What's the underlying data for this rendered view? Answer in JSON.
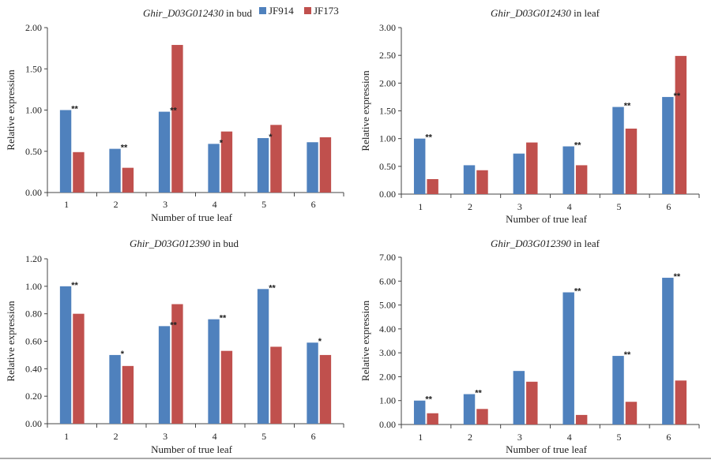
{
  "colors": {
    "JF914": "#4F81BD",
    "JF173": "#C0504D"
  },
  "legend": [
    "JF914",
    "JF173"
  ],
  "chart_data": [
    {
      "type": "bar",
      "title_gene": "Ghir_D03G012430",
      "title_rest": " in bud",
      "xlabel": "Number of true leaf",
      "ylabel": "Relative expression",
      "categories": [
        "1",
        "2",
        "3",
        "4",
        "5",
        "6"
      ],
      "ylim": [
        0,
        2.0
      ],
      "yticks": [
        "0.00",
        "0.50",
        "1.00",
        "1.50",
        "2.00"
      ],
      "series": [
        {
          "name": "JF914",
          "values": [
            1.0,
            0.53,
            0.98,
            0.59,
            0.66,
            0.61
          ]
        },
        {
          "name": "JF173",
          "values": [
            0.49,
            0.3,
            1.79,
            0.74,
            0.82,
            0.67
          ]
        }
      ],
      "significance": [
        "**",
        "**",
        "**",
        "*",
        "*",
        ""
      ]
    },
    {
      "type": "bar",
      "title_gene": "Ghir_D03G012430",
      "title_rest": " in leaf",
      "xlabel": "Number of true leaf",
      "ylabel": "Relative expression",
      "categories": [
        "1",
        "2",
        "3",
        "4",
        "5",
        "6"
      ],
      "ylim": [
        0,
        3.0
      ],
      "yticks": [
        "0.00",
        "0.50",
        "1.00",
        "1.50",
        "2.00",
        "2.50",
        "3.00"
      ],
      "series": [
        {
          "name": "JF914",
          "values": [
            1.0,
            0.52,
            0.73,
            0.86,
            1.57,
            1.75
          ]
        },
        {
          "name": "JF173",
          "values": [
            0.27,
            0.43,
            0.93,
            0.52,
            1.18,
            2.49
          ]
        }
      ],
      "significance": [
        "**",
        "",
        "",
        "**",
        "**",
        "**"
      ]
    },
    {
      "type": "bar",
      "title_gene": "Ghir_D03G012390",
      "title_rest": " in bud",
      "xlabel": "Number of true leaf",
      "ylabel": "Relative expression",
      "categories": [
        "1",
        "2",
        "3",
        "4",
        "5",
        "6"
      ],
      "ylim": [
        0,
        1.2
      ],
      "yticks": [
        "0.00",
        "0.20",
        "0.40",
        "0.60",
        "0.80",
        "1.00",
        "1.20"
      ],
      "series": [
        {
          "name": "JF914",
          "values": [
            1.0,
            0.5,
            0.71,
            0.76,
            0.98,
            0.59
          ]
        },
        {
          "name": "JF173",
          "values": [
            0.8,
            0.42,
            0.87,
            0.53,
            0.56,
            0.5
          ]
        }
      ],
      "significance": [
        "**",
        "*",
        "**",
        "**",
        "**",
        "*"
      ]
    },
    {
      "type": "bar",
      "title_gene": "Ghir_D03G012390",
      "title_rest": " in leaf",
      "xlabel": "Number of true leaf",
      "ylabel": "Relative expression",
      "categories": [
        "1",
        "2",
        "3",
        "4",
        "5",
        "6"
      ],
      "ylim": [
        0,
        7.0
      ],
      "yticks": [
        "0.00",
        "1.00",
        "2.00",
        "3.00",
        "4.00",
        "5.00",
        "6.00",
        "7.00"
      ],
      "series": [
        {
          "name": "JF914",
          "values": [
            1.0,
            1.27,
            2.24,
            5.53,
            2.87,
            6.14
          ]
        },
        {
          "name": "JF173",
          "values": [
            0.47,
            0.65,
            1.79,
            0.4,
            0.95,
            1.84
          ]
        }
      ],
      "significance": [
        "**",
        "**",
        "",
        "**",
        "**",
        "**"
      ]
    }
  ]
}
